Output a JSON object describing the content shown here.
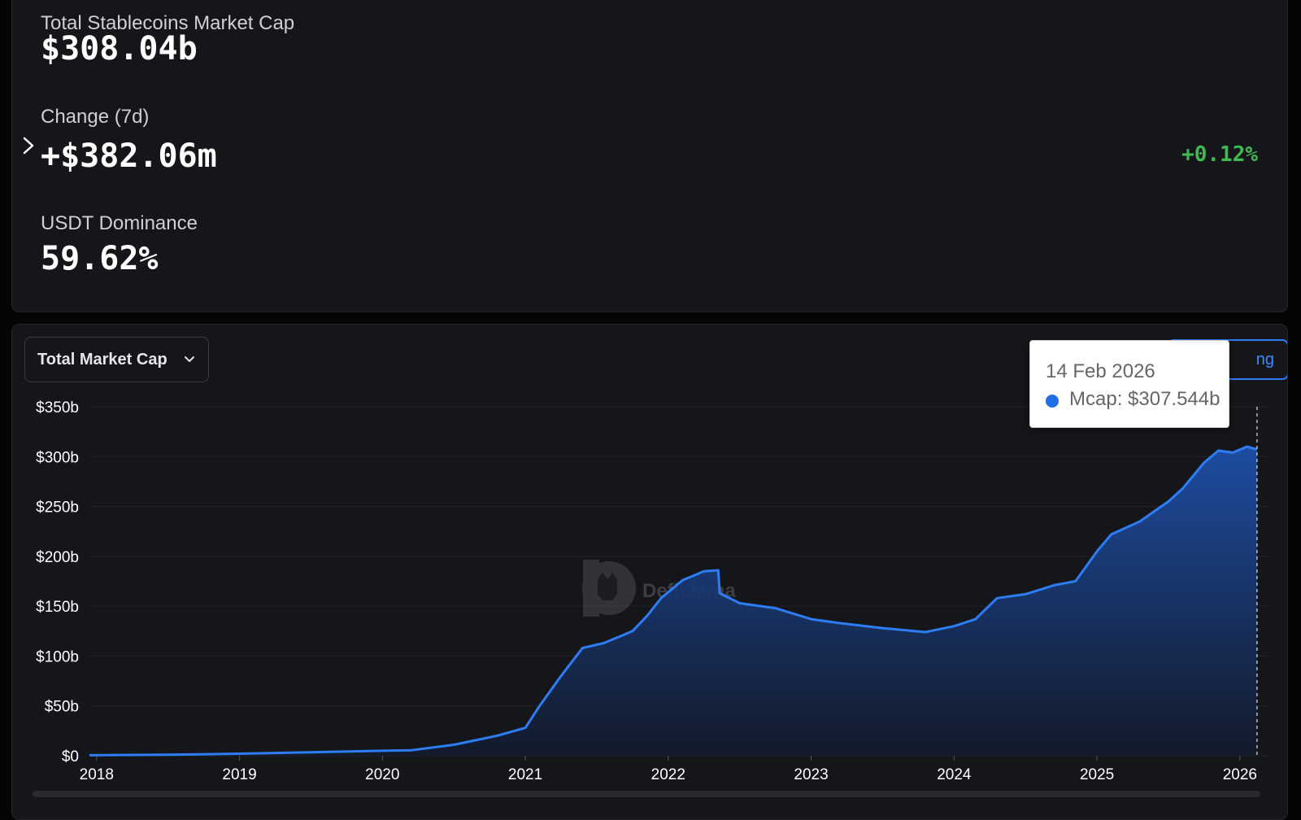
{
  "stats": {
    "total_label": "Total Stablecoins Market Cap",
    "total_value": "$308.04b",
    "change_label": "Change (7d)",
    "change_value": "+$382.06m",
    "change_pct": "+0.12%",
    "dominance_label": "USDT Dominance",
    "dominance_value": "59.62%"
  },
  "controls": {
    "dropdown_label": "Total Market Cap",
    "toggle_label": "ng"
  },
  "tooltip": {
    "date": "14 Feb 2026",
    "series": "Mcap: $307.544b"
  },
  "watermark": "DefiLlama",
  "colors": {
    "accent": "#2d7df6",
    "positive": "#3fb950",
    "background": "#151619"
  },
  "chart_data": {
    "type": "area",
    "y_tick_labels": [
      "$0",
      "$50b",
      "$100b",
      "$150b",
      "$200b",
      "$250b",
      "$300b",
      "$350b"
    ],
    "x_tick_labels": [
      "2018",
      "2019",
      "2020",
      "2021",
      "2022",
      "2023",
      "2024",
      "2025",
      "2026"
    ],
    "ylim": [
      0,
      350
    ],
    "y_unit": "billions USD",
    "grid": true,
    "series": [
      {
        "color": "#2d7df6",
        "x": [
          2017.95,
          2018.5,
          2019.0,
          2019.5,
          2020.0,
          2020.2,
          2020.5,
          2020.8,
          2021.0,
          2021.1,
          2021.25,
          2021.4,
          2021.55,
          2021.75,
          2021.85,
          2021.95,
          2022.1,
          2022.25,
          2022.35,
          2022.36,
          2022.5,
          2022.75,
          2023.0,
          2023.2,
          2023.5,
          2023.8,
          2024.0,
          2024.15,
          2024.3,
          2024.5,
          2024.7,
          2024.85,
          2025.0,
          2025.1,
          2025.3,
          2025.5,
          2025.6,
          2025.75,
          2025.85,
          2025.95,
          2026.05,
          2026.1,
          2026.12
        ],
        "y": [
          0.5,
          1.0,
          2.0,
          3.5,
          5.0,
          5.5,
          11.0,
          20.0,
          28.0,
          50.0,
          80.0,
          108.0,
          113.0,
          125.0,
          140.0,
          158.0,
          176.0,
          185.0,
          186.0,
          163.0,
          153.0,
          148.0,
          137.0,
          133.0,
          128.0,
          124.0,
          130.0,
          137.0,
          158.0,
          162.0,
          171.0,
          175.0,
          205.0,
          222.0,
          235.0,
          255.0,
          268.0,
          294.0,
          306.0,
          304.0,
          310.0,
          308.0,
          307.544
        ]
      }
    ]
  }
}
